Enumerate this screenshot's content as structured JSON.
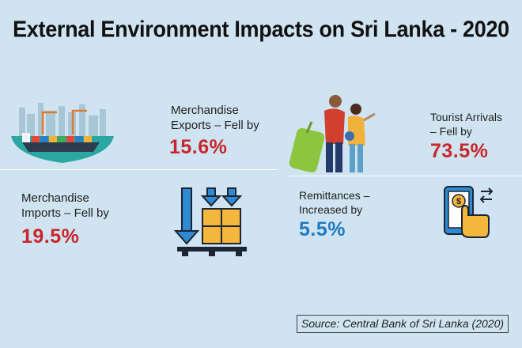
{
  "title": "External Environment Impacts on Sri Lanka - 2020",
  "items": {
    "exports": {
      "label_line1": "Merchandise",
      "label_line2": "Exports – Fell by",
      "value": "15.6%",
      "color": "#c8262b"
    },
    "tourism": {
      "label_line1": "Tourist Arrivals",
      "label_line2": "– Fell by",
      "value": "73.5%",
      "color": "#c8262b"
    },
    "imports": {
      "label_line1": "Merchandise",
      "label_line2": "Imports – Fell by",
      "value": "19.5%",
      "color": "#c8262b"
    },
    "remittances": {
      "label_line1": "Remittances –",
      "label_line2": "Increased by",
      "value": "5.5%",
      "color": "#1e7bc1"
    }
  },
  "icons": [
    "cargo-ship-icon",
    "travelers-icon",
    "boxes-down-icon",
    "mobile-payment-icon"
  ],
  "source": "Source: Central Bank of Sri Lanka (2020)"
}
